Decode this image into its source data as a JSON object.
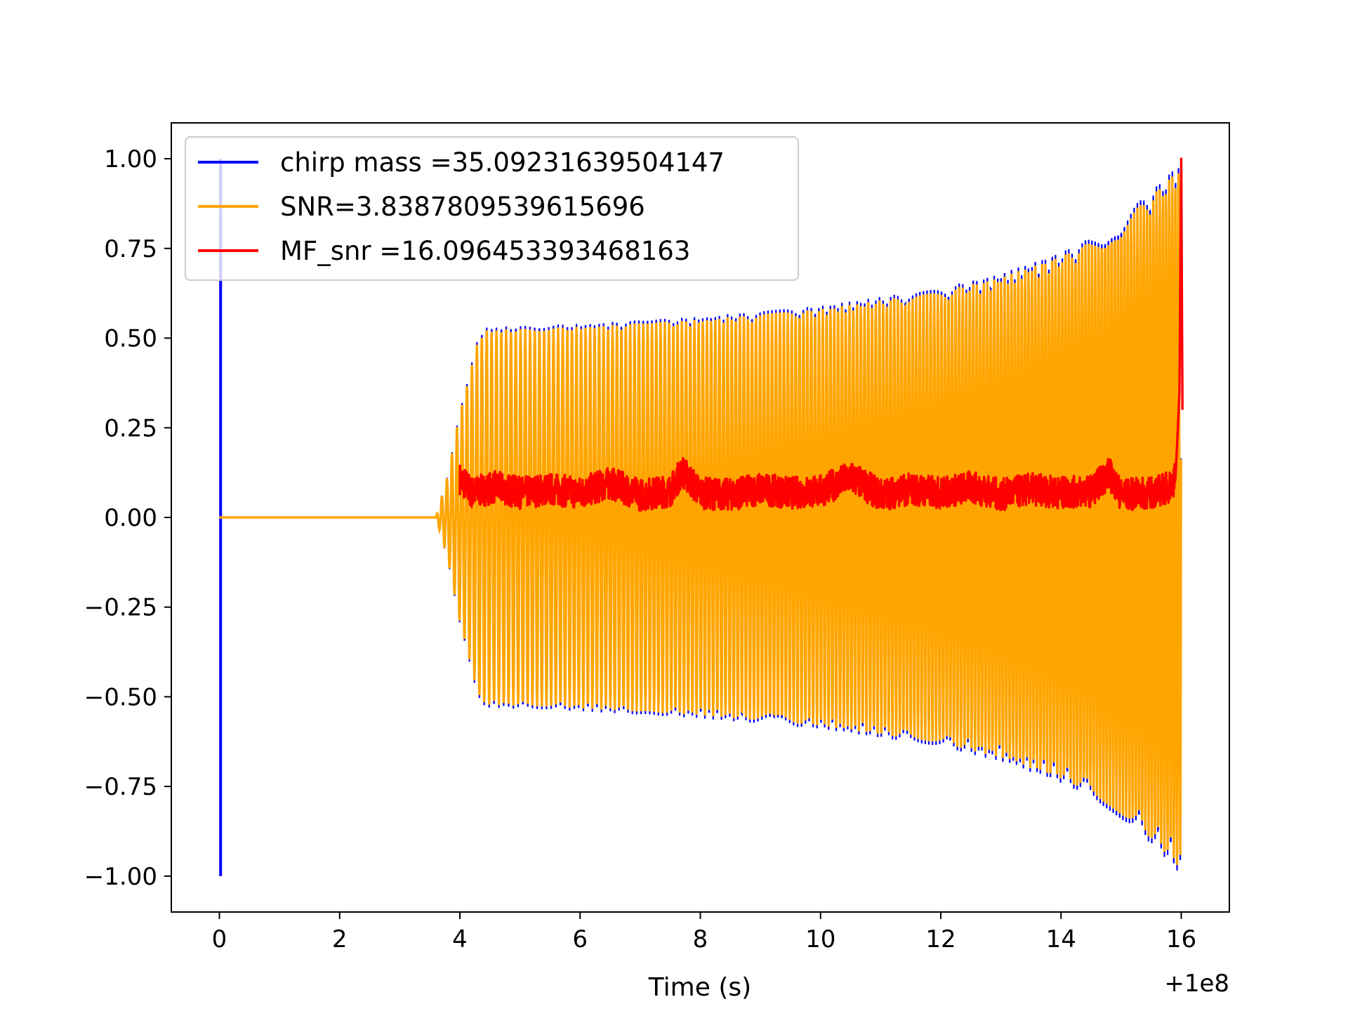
{
  "chart_data": {
    "type": "line",
    "title": "",
    "xlabel": "Time (s)",
    "ylabel": "",
    "x_offset_label": "+1e8",
    "xlim": [
      -0.8,
      16.8
    ],
    "ylim": [
      -1.1,
      1.1
    ],
    "x_ticks": [
      0,
      2,
      4,
      6,
      8,
      10,
      12,
      14,
      16
    ],
    "x_tick_labels": [
      "0",
      "2",
      "4",
      "6",
      "8",
      "10",
      "12",
      "14",
      "16"
    ],
    "y_ticks": [
      1.0,
      0.75,
      0.5,
      0.25,
      0.0,
      -0.25,
      -0.5,
      -0.75,
      -1.0
    ],
    "y_tick_labels": [
      "1.00",
      "0.75",
      "0.50",
      "0.25",
      "0.00",
      "−0.25",
      "−0.50",
      "−0.75",
      "−1.00"
    ],
    "grid": false,
    "legend_position": "top-left",
    "series": [
      {
        "name": "chirp mass =35.09231639504147",
        "color": "#0000ff",
        "description_points": {
          "impulse_x": 0.02,
          "impulse_range": [
            -1.0,
            1.0
          ],
          "quiet": {
            "x": [
              0.03,
              3.6
            ],
            "y": 0.0
          },
          "envelope_x": [
            3.6,
            3.8,
            4.0,
            4.3,
            4.4,
            6,
            8,
            10,
            12,
            13,
            14,
            14.5,
            15,
            15.5,
            15.8,
            16.0
          ],
          "envelope_y": [
            0.0,
            0.12,
            0.3,
            0.5,
            0.53,
            0.54,
            0.56,
            0.59,
            0.64,
            0.68,
            0.74,
            0.78,
            0.84,
            0.91,
            0.96,
            1.0
          ]
        }
      },
      {
        "name": "SNR=3.8387809539615696",
        "color": "#ffa500",
        "description_points": {
          "quiet": {
            "x": [
              0.0,
              3.6
            ],
            "y": 0.0
          },
          "envelope_x": [
            3.6,
            3.8,
            4.0,
            4.3,
            4.4,
            6,
            8,
            10,
            12,
            13,
            14,
            14.5,
            15,
            15.5,
            15.8,
            16.0
          ],
          "envelope_y": [
            0.0,
            0.12,
            0.3,
            0.5,
            0.53,
            0.54,
            0.56,
            0.59,
            0.64,
            0.68,
            0.74,
            0.78,
            0.84,
            0.91,
            0.96,
            1.0
          ]
        }
      },
      {
        "name": "MF_snr =16.096453393468163",
        "color": "#ff0000",
        "description_points": {
          "x": [
            4.0,
            4.1,
            4.2,
            4.6,
            5.0,
            5.5,
            6.0,
            6.5,
            7.0,
            7.5,
            7.7,
            8.0,
            8.5,
            9.0,
            9.5,
            10.0,
            10.5,
            11.0,
            11.5,
            12.0,
            12.5,
            13.0,
            13.5,
            14.0,
            14.5,
            14.8,
            15.0,
            15.5,
            15.8,
            15.95,
            16.0
          ],
          "y": [
            0.17,
            0.14,
            0.1,
            0.13,
            0.1,
            0.12,
            0.1,
            0.15,
            0.09,
            0.11,
            0.21,
            0.1,
            0.09,
            0.12,
            0.1,
            0.11,
            0.18,
            0.09,
            0.12,
            0.1,
            0.13,
            0.09,
            0.12,
            0.1,
            0.11,
            0.2,
            0.09,
            0.1,
            0.13,
            0.2,
            1.0
          ]
        }
      }
    ]
  }
}
